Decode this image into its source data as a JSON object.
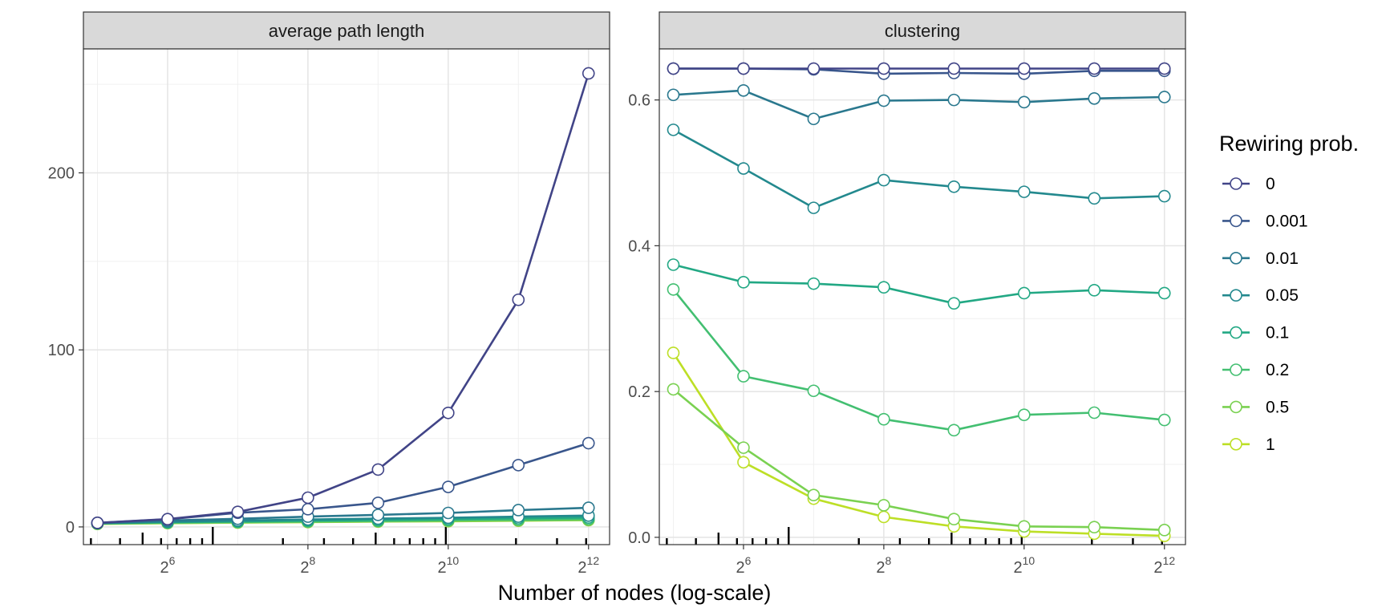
{
  "chart_data": {
    "type": "line",
    "xlabel": "Number of nodes (log-scale)",
    "x_scale": "log2",
    "x_tick_labels": [
      {
        "exp": 6,
        "base": "2",
        "sup": "6"
      },
      {
        "exp": 8,
        "base": "2",
        "sup": "8"
      },
      {
        "exp": 10,
        "base": "2",
        "sup": "10"
      },
      {
        "exp": 12,
        "base": "2",
        "sup": "12"
      }
    ],
    "x": [
      32,
      64,
      128,
      256,
      512,
      1024,
      2048,
      4096
    ],
    "legend": {
      "title": "Rewiring prob.",
      "placement": "right"
    },
    "series_names": [
      "0",
      "0.001",
      "0.01",
      "0.05",
      "0.1",
      "0.2",
      "0.5",
      "1"
    ],
    "series_colors": [
      "#414487",
      "#39568C",
      "#2A788E",
      "#23898E",
      "#22A884",
      "#43BF71",
      "#7AD151",
      "#BDDF26"
    ],
    "panels": [
      {
        "strip": "average path length",
        "ylim": [
          -10,
          270
        ],
        "y_ticks": [
          0,
          100,
          200
        ],
        "y_tick_labels": [
          "0",
          "100",
          "200"
        ],
        "series": [
          {
            "name": "0",
            "values": [
              2.3,
              4.4,
              8.5,
              16.5,
              32.4,
              64.4,
              128.3,
              256.2
            ]
          },
          {
            "name": "0.001",
            "values": [
              2.3,
              4.3,
              8.0,
              10.0,
              13.6,
              22.6,
              34.9,
              47.3
            ]
          },
          {
            "name": "0.01",
            "values": [
              2.2,
              3.6,
              4.6,
              5.8,
              6.8,
              7.9,
              9.5,
              10.8
            ]
          },
          {
            "name": "0.05",
            "values": [
              2.1,
              3.0,
              3.6,
              4.2,
              4.7,
              5.2,
              5.8,
              6.4
            ]
          },
          {
            "name": "0.1",
            "values": [
              2.0,
              2.7,
              3.1,
              3.6,
              4.0,
              4.4,
              4.9,
              5.3
            ]
          },
          {
            "name": "0.2",
            "values": [
              1.9,
              2.4,
              2.8,
              3.1,
              3.4,
              3.8,
              4.1,
              4.5
            ]
          },
          {
            "name": "0.5",
            "values": [
              1.8,
              2.2,
              2.5,
              2.8,
              3.1,
              3.3,
              3.6,
              3.9
            ]
          },
          {
            "name": "1",
            "values": [
              1.7,
              2.1,
              2.4,
              2.7,
              3.0,
              3.2,
              3.5,
              3.8
            ]
          }
        ]
      },
      {
        "strip": "clustering",
        "ylim": [
          -0.01,
          0.67
        ],
        "y_ticks": [
          0,
          0.2,
          0.4,
          0.6
        ],
        "y_tick_labels": [
          "0.0",
          "0.2",
          "0.4",
          "0.6"
        ],
        "series": [
          {
            "name": "0",
            "values": [
              0.643,
              0.643,
              0.643,
              0.643,
              0.643,
              0.643,
              0.643,
              0.643
            ]
          },
          {
            "name": "0.001",
            "values": [
              0.643,
              0.643,
              0.642,
              0.636,
              0.637,
              0.636,
              0.64,
              0.64
            ]
          },
          {
            "name": "0.01",
            "values": [
              0.607,
              0.613,
              0.574,
              0.599,
              0.6,
              0.597,
              0.602,
              0.604
            ]
          },
          {
            "name": "0.05",
            "values": [
              0.559,
              0.506,
              0.452,
              0.49,
              0.481,
              0.474,
              0.465,
              0.468
            ]
          },
          {
            "name": "0.1",
            "values": [
              0.374,
              0.35,
              0.348,
              0.343,
              0.321,
              0.335,
              0.339,
              0.335
            ]
          },
          {
            "name": "0.2",
            "values": [
              0.34,
              0.221,
              0.201,
              0.162,
              0.147,
              0.168,
              0.171,
              0.161
            ]
          },
          {
            "name": "0.5",
            "values": [
              0.203,
              0.123,
              0.058,
              0.044,
              0.025,
              0.015,
              0.014,
              0.01
            ]
          },
          {
            "name": "1",
            "values": [
              0.253,
              0.103,
              0.053,
              0.028,
              0.015,
              0.008,
              0.005,
              0.002
            ]
          }
        ]
      }
    ]
  }
}
